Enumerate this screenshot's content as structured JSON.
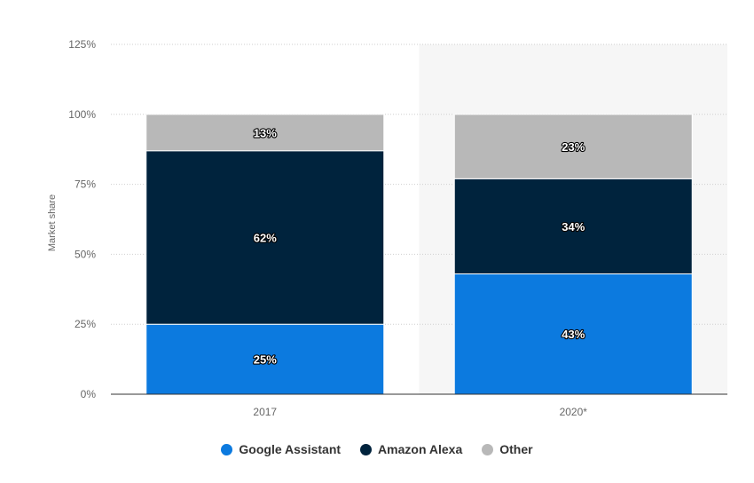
{
  "chart_data": {
    "type": "bar",
    "stacked": true,
    "categories": [
      "2017",
      "2020*"
    ],
    "series": [
      {
        "name": "Google Assistant",
        "values": [
          25,
          43
        ],
        "color": "#0c7adf"
      },
      {
        "name": "Amazon Alexa",
        "values": [
          62,
          34
        ],
        "color": "#00233d"
      },
      {
        "name": "Other",
        "values": [
          13,
          23
        ],
        "color": "#b8b8b8"
      }
    ],
    "data_labels": [
      [
        "25%",
        "43%"
      ],
      [
        "62%",
        "34%"
      ],
      [
        "13%",
        "23%"
      ]
    ],
    "ylabel": "Market share",
    "ylim": [
      0,
      125
    ],
    "yticks": [
      0,
      25,
      50,
      75,
      100,
      125
    ],
    "ytick_labels": [
      "0%",
      "25%",
      "50%",
      "75%",
      "100%",
      "125%"
    ],
    "grid": true,
    "legend_position": "bottom",
    "highlighted_category": "2020*"
  }
}
